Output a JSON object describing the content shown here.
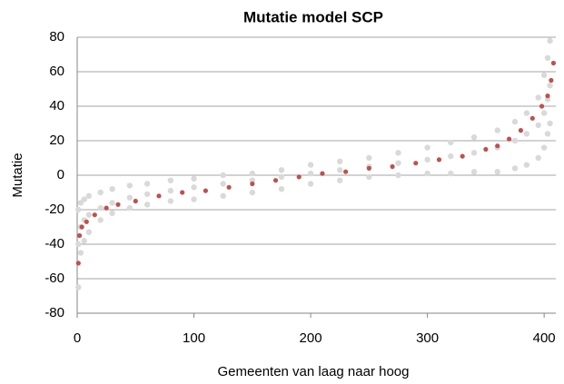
{
  "chart_data": {
    "type": "scatter",
    "title": "Mutatie model SCP",
    "xlabel": "Gemeenten  van laag naar hoog",
    "ylabel": "Mutatie",
    "xlim": [
      0,
      410
    ],
    "ylim": [
      -80,
      80
    ],
    "xticks": [
      0,
      100,
      200,
      300,
      400
    ],
    "yticks": [
      -80,
      -60,
      -40,
      -20,
      0,
      20,
      40,
      60,
      80
    ],
    "grid": true,
    "series": [
      {
        "color": "#d9d9d9",
        "x": [
          1,
          3,
          6,
          10,
          20,
          30,
          45,
          60,
          80,
          100,
          125,
          150,
          175,
          200,
          225,
          250,
          275,
          300,
          320,
          340,
          360,
          375,
          385,
          395,
          400,
          403,
          405
        ],
        "values": [
          -20,
          -16,
          -14,
          -12,
          -10,
          -8,
          -6,
          -5,
          -3,
          -2,
          0,
          1,
          3,
          6,
          8,
          10,
          13,
          16,
          19,
          22,
          26,
          31,
          36,
          45,
          58,
          68,
          78
        ]
      },
      {
        "color": "#d9d9d9",
        "x": [
          1,
          3,
          6,
          10,
          20,
          30,
          45,
          60,
          80,
          100,
          125,
          150,
          175,
          200,
          225,
          250,
          275,
          300,
          320,
          340,
          360,
          375,
          385,
          395,
          400,
          403,
          405
        ],
        "values": [
          -40,
          -30,
          -26,
          -23,
          -19,
          -16,
          -13,
          -11,
          -9,
          -7,
          -5,
          -3,
          -1,
          1,
          3,
          5,
          7,
          9,
          11,
          13,
          16,
          20,
          24,
          29,
          36,
          44,
          52
        ]
      },
      {
        "color": "#d9d9d9",
        "x": [
          1,
          3,
          6,
          10,
          20,
          30,
          45,
          60,
          80,
          100,
          125,
          150,
          175,
          200,
          225,
          250,
          275,
          300,
          320,
          340,
          360,
          375,
          385,
          395,
          400,
          403,
          405
        ],
        "values": [
          -65,
          -45,
          -38,
          -33,
          -26,
          -22,
          -19,
          -17,
          -15,
          -14,
          -12,
          -10,
          -8,
          -5,
          -3,
          -1,
          0,
          1,
          1,
          2,
          2,
          4,
          6,
          10,
          16,
          24,
          30
        ]
      },
      {
        "color": "#c0504d",
        "x": [
          1,
          2,
          4,
          8,
          15,
          25,
          35,
          50,
          70,
          90,
          110,
          130,
          150,
          170,
          190,
          210,
          230,
          250,
          270,
          290,
          310,
          330,
          350,
          360,
          370,
          380,
          390,
          398,
          403,
          406,
          408
        ],
        "values": [
          -51,
          -35,
          -30,
          -27,
          -23,
          -19,
          -17,
          -15,
          -12,
          -10,
          -9,
          -7,
          -5,
          -3,
          -1,
          1,
          2,
          4,
          5,
          7,
          9,
          11,
          15,
          17,
          21,
          26,
          33,
          40,
          46,
          55,
          65
        ]
      }
    ]
  }
}
